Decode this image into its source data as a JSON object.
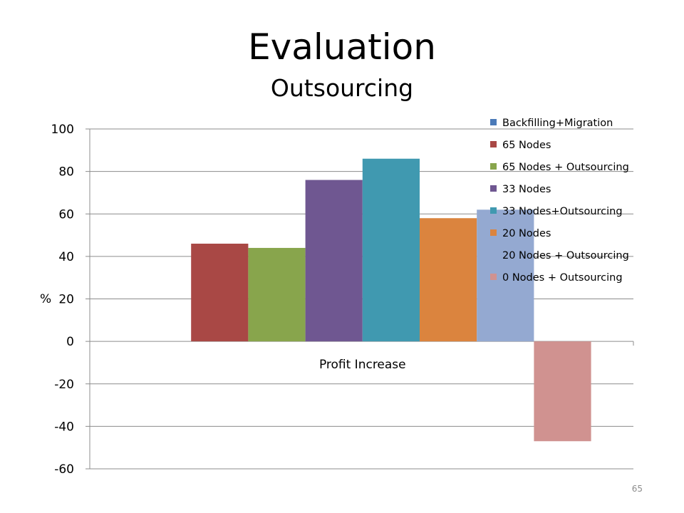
{
  "slide": {
    "title": "Evaluation",
    "subtitle": "Outsourcing",
    "page_number": "65"
  },
  "chart_data": {
    "type": "bar",
    "categories": [
      "Profit Increase"
    ],
    "ylabel": "%",
    "ylim": [
      -60,
      100
    ],
    "yticks": [
      100,
      80,
      60,
      40,
      20,
      0,
      -20,
      -40,
      -60
    ],
    "grid": true,
    "legend_position": "top-right",
    "series": [
      {
        "name": "Backfilling+Migration",
        "values": [
          0
        ],
        "color": "#4a7ab8"
      },
      {
        "name": "65 Nodes",
        "values": [
          46
        ],
        "color": "#a94845"
      },
      {
        "name": "65 Nodes + Outsourcing",
        "values": [
          44
        ],
        "color": "#88a54c"
      },
      {
        "name": "33 Nodes",
        "values": [
          76
        ],
        "color": "#6f5791"
      },
      {
        "name": "33 Nodes+Outsourcing",
        "values": [
          86
        ],
        "color": "#4099b0"
      },
      {
        "name": "20 Nodes",
        "values": [
          58
        ],
        "color": "#db843e"
      },
      {
        "name": "20 Nodes + Outsourcing",
        "values": [
          62
        ],
        "color": "#94a9d1"
      },
      {
        "name": "0 Nodes + Outsourcing",
        "values": [
          -47
        ],
        "color": "#d09290"
      }
    ]
  }
}
